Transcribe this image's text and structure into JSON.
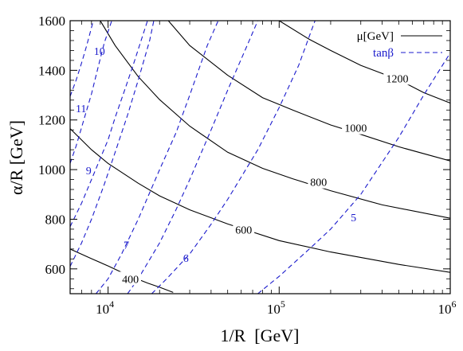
{
  "chart_data": {
    "type": "line",
    "title": "",
    "xlabel": "1/R  [GeV]",
    "ylabel": "α/R [GeV]",
    "x_scale": "log",
    "xlim": [
      6000,
      1000000
    ],
    "ylim": [
      500,
      1600
    ],
    "x_ticks": [
      {
        "value": 10000,
        "mantissa": "10",
        "exp": "4"
      },
      {
        "value": 100000,
        "mantissa": "10",
        "exp": "5"
      },
      {
        "value": 1000000,
        "mantissa": "10",
        "exp": "6"
      }
    ],
    "y_ticks": [
      600,
      800,
      1000,
      1200,
      1400,
      1600
    ],
    "legend": {
      "placement": "top-right",
      "entries": [
        {
          "name": "μ[GeV]",
          "style": "solid",
          "color": "#000000"
        },
        {
          "name": "tanβ",
          "style": "dashed",
          "color": "#1a1acc"
        }
      ]
    },
    "colors": {
      "mu": "#000000",
      "tanbeta": "#1a1acc",
      "axes": "#000000"
    },
    "series": [
      {
        "group": "mu",
        "label": "400",
        "label_at": [
          13500,
          560
        ],
        "points": [
          [
            6000,
            680
          ],
          [
            8000,
            641
          ],
          [
            10000,
            612
          ],
          [
            13000,
            575
          ],
          [
            17000,
            543
          ],
          [
            20000,
            526
          ],
          [
            24000,
            505
          ]
        ]
      },
      {
        "group": "mu",
        "label": "600",
        "label_at": [
          62000,
          758
        ],
        "points": [
          [
            6000,
            1165
          ],
          [
            8000,
            1080
          ],
          [
            10000,
            1025
          ],
          [
            15000,
            945
          ],
          [
            20000,
            894
          ],
          [
            30000,
            838
          ],
          [
            50000,
            781
          ],
          [
            100000,
            714
          ],
          [
            200000,
            668
          ],
          [
            500000,
            618
          ],
          [
            1000000,
            586
          ]
        ]
      },
      {
        "group": "mu",
        "label": "800",
        "label_at": [
          170000,
          950
        ],
        "points": [
          [
            9000,
            1600
          ],
          [
            11000,
            1500
          ],
          [
            15000,
            1375
          ],
          [
            20000,
            1282
          ],
          [
            30000,
            1175
          ],
          [
            50000,
            1070
          ],
          [
            80000,
            1005
          ],
          [
            120000,
            963
          ],
          [
            200000,
            915
          ],
          [
            400000,
            858
          ],
          [
            1000000,
            804
          ]
        ]
      },
      {
        "group": "mu",
        "label": "1000",
        "label_at": [
          280000,
          1168
        ],
        "points": [
          [
            22500,
            1600
          ],
          [
            30000,
            1500
          ],
          [
            50000,
            1380
          ],
          [
            80000,
            1290
          ],
          [
            120000,
            1240
          ],
          [
            200000,
            1180
          ],
          [
            300000,
            1142
          ],
          [
            500000,
            1092
          ],
          [
            1000000,
            1035
          ]
        ]
      },
      {
        "group": "mu",
        "label": "1200",
        "label_at": [
          490000,
          1368
        ],
        "points": [
          [
            100000,
            1600
          ],
          [
            150000,
            1525
          ],
          [
            200000,
            1480
          ],
          [
            300000,
            1420
          ],
          [
            500000,
            1362
          ],
          [
            700000,
            1310
          ],
          [
            1000000,
            1268
          ]
        ]
      },
      {
        "group": "tanbeta",
        "label": "5",
        "label_at": [
          272000,
          808
        ],
        "points": [
          [
            75000,
            500
          ],
          [
            100000,
            570
          ],
          [
            150000,
            680
          ],
          [
            200000,
            760
          ],
          [
            300000,
            900
          ],
          [
            500000,
            1130
          ],
          [
            700000,
            1300
          ],
          [
            1000000,
            1470
          ]
        ]
      },
      {
        "group": "tanbeta",
        "label": "6",
        "label_at": [
          28500,
          645
        ],
        "points": [
          [
            18000,
            500
          ],
          [
            22000,
            560
          ],
          [
            30000,
            660
          ],
          [
            40000,
            780
          ],
          [
            50000,
            880
          ],
          [
            75000,
            1080
          ],
          [
            100000,
            1250
          ],
          [
            130000,
            1420
          ],
          [
            162000,
            1600
          ]
        ]
      },
      {
        "group": "tanbeta",
        "label": "7",
        "label_at": [
          12800,
          698
        ],
        "points": [
          [
            8500,
            500
          ],
          [
            10000,
            560
          ],
          [
            12000,
            660
          ],
          [
            15000,
            800
          ],
          [
            20000,
            1000
          ],
          [
            25000,
            1150
          ],
          [
            30000,
            1300
          ],
          [
            38000,
            1500
          ],
          [
            44000,
            1600
          ]
        ]
      },
      {
        "group": "tanbeta",
        "label": "9",
        "label_at": [
          7700,
          997
        ],
        "points": [
          [
            6000,
            770
          ],
          [
            7000,
            865
          ],
          [
            8000,
            960
          ],
          [
            9000,
            1045
          ],
          [
            10000,
            1120
          ],
          [
            11000,
            1210
          ],
          [
            12500,
            1320
          ],
          [
            14000,
            1420
          ],
          [
            17000,
            1600
          ]
        ]
      },
      {
        "group": "tanbeta",
        "label": "10",
        "label_at": [
          8900,
          1478
        ],
        "points": [
          [
            6000,
            1025
          ],
          [
            6500,
            1095
          ],
          [
            7000,
            1170
          ],
          [
            7500,
            1240
          ],
          [
            8000,
            1305
          ],
          [
            8800,
            1420
          ],
          [
            9500,
            1510
          ],
          [
            10500,
            1600
          ]
        ]
      },
      {
        "group": "tanbeta",
        "label": "11",
        "label_at": [
          6950,
          1248
        ],
        "points": [
          [
            6000,
            1295
          ],
          [
            6500,
            1360
          ],
          [
            7000,
            1430
          ],
          [
            7500,
            1500
          ],
          [
            8200,
            1600
          ]
        ]
      },
      {
        "group": "tanbeta",
        "label": "",
        "label_at": null,
        "points": [
          [
            6000,
            610
          ],
          [
            7000,
            705
          ],
          [
            8000,
            800
          ],
          [
            9500,
            940
          ],
          [
            11000,
            1070
          ],
          [
            13000,
            1220
          ],
          [
            15000,
            1360
          ],
          [
            17500,
            1520
          ],
          [
            18500,
            1600
          ]
        ]
      },
      {
        "group": "tanbeta",
        "label": "",
        "label_at": null,
        "points": [
          [
            13000,
            500
          ],
          [
            15000,
            560
          ],
          [
            20000,
            705
          ],
          [
            25000,
            840
          ],
          [
            30000,
            960
          ],
          [
            40000,
            1160
          ],
          [
            50000,
            1320
          ],
          [
            65000,
            1500
          ],
          [
            75000,
            1600
          ]
        ]
      }
    ]
  }
}
